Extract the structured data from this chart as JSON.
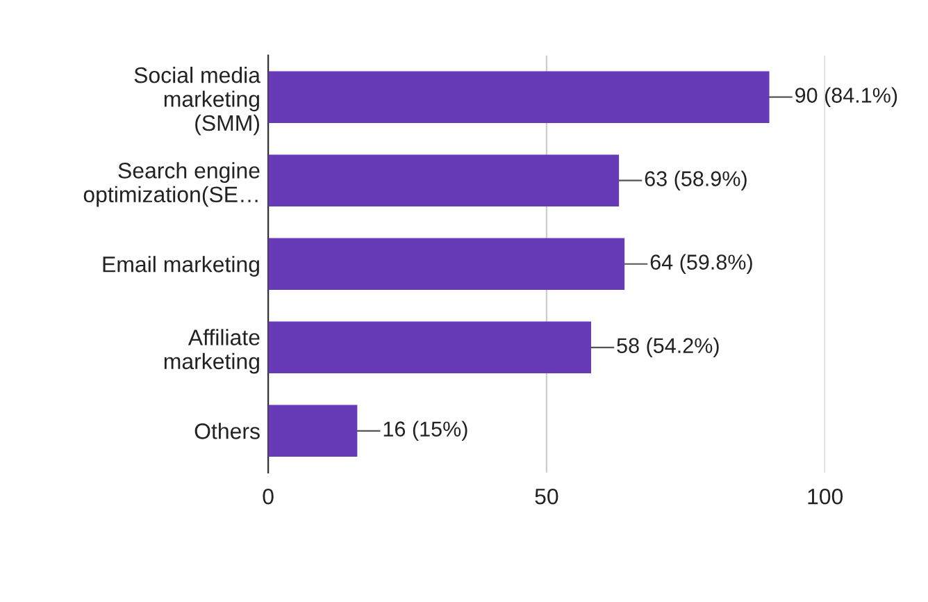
{
  "chart_data": {
    "type": "bar",
    "orientation": "horizontal",
    "categories": [
      "Social media\nmarketing\n(SMM)",
      "Search engine\noptimization(SE…",
      "Email marketing",
      "Affiliate\nmarketing",
      "Others"
    ],
    "values": [
      90,
      63,
      64,
      58,
      16
    ],
    "value_labels": [
      "90 (84.1%)",
      "63 (58.9%)",
      "64 (59.8%)",
      "58 (54.2%)",
      "16 (15%)"
    ],
    "color": "#673ab7",
    "xlim": [
      0,
      100
    ],
    "xticks": [
      0,
      50,
      100
    ],
    "grid": "x",
    "legend": false
  }
}
